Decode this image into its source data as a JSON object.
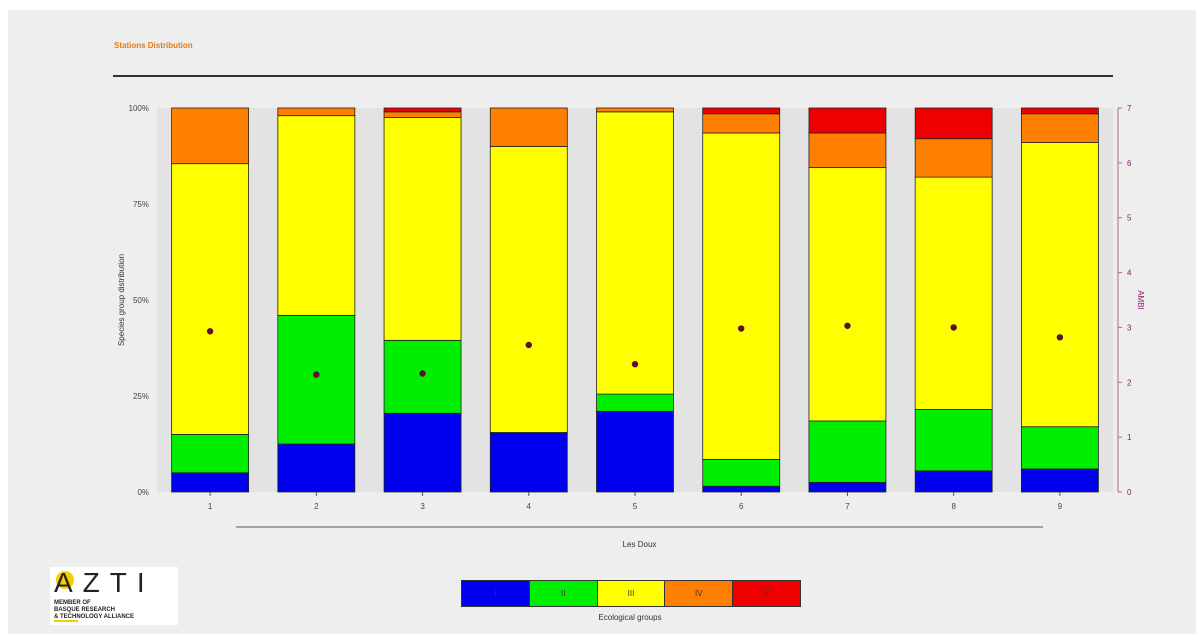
{
  "header": {
    "title": "Stations Distribution"
  },
  "chart_data": {
    "type": "bar",
    "stacked": true,
    "xlabel": "Les Doux",
    "ylabel": "Species group distribution",
    "ylabel_right": "AMBI",
    "ylim": [
      0,
      100
    ],
    "ylim_right": [
      0,
      7
    ],
    "y_ticks": [
      "0%",
      "25%",
      "50%",
      "75%",
      "100%"
    ],
    "y_ticks_right": [
      "0",
      "1",
      "2",
      "3",
      "4",
      "5",
      "6",
      "7"
    ],
    "categories": [
      "1",
      "2",
      "3",
      "4",
      "5",
      "6",
      "7",
      "8",
      "9"
    ],
    "series": [
      {
        "name": "I",
        "color": "#0000ee",
        "values": [
          5,
          12.5,
          20.5,
          15.5,
          21,
          1.5,
          2.5,
          5.5,
          6
        ]
      },
      {
        "name": "II",
        "color": "#00ee00",
        "values": [
          10,
          33.5,
          19,
          0,
          4.5,
          7,
          16,
          16,
          11
        ]
      },
      {
        "name": "III",
        "color": "#ffff00",
        "values": [
          70.5,
          52,
          58,
          74.5,
          73.5,
          85,
          66,
          60.5,
          74
        ]
      },
      {
        "name": "IV",
        "color": "#ff8000",
        "values": [
          14.5,
          2,
          1.5,
          10,
          1,
          5,
          9,
          10,
          7.5
        ]
      },
      {
        "name": "V",
        "color": "#ee0000",
        "values": [
          0,
          0,
          1,
          0,
          0,
          1.5,
          6.5,
          8,
          1.5
        ]
      }
    ],
    "ambi": [
      2.93,
      2.14,
      2.16,
      2.68,
      2.33,
      2.98,
      3.03,
      3.0,
      2.82
    ],
    "ambi_color": "#5a1030",
    "legend": {
      "title": "Ecological groups",
      "placement": "bottom-center"
    }
  },
  "logo": {
    "mark": "AZTI",
    "line1": "MEMBER OF",
    "line2": "BASQUE RESEARCH",
    "line3": "& TECHNOLOGY ALLIANCE"
  }
}
